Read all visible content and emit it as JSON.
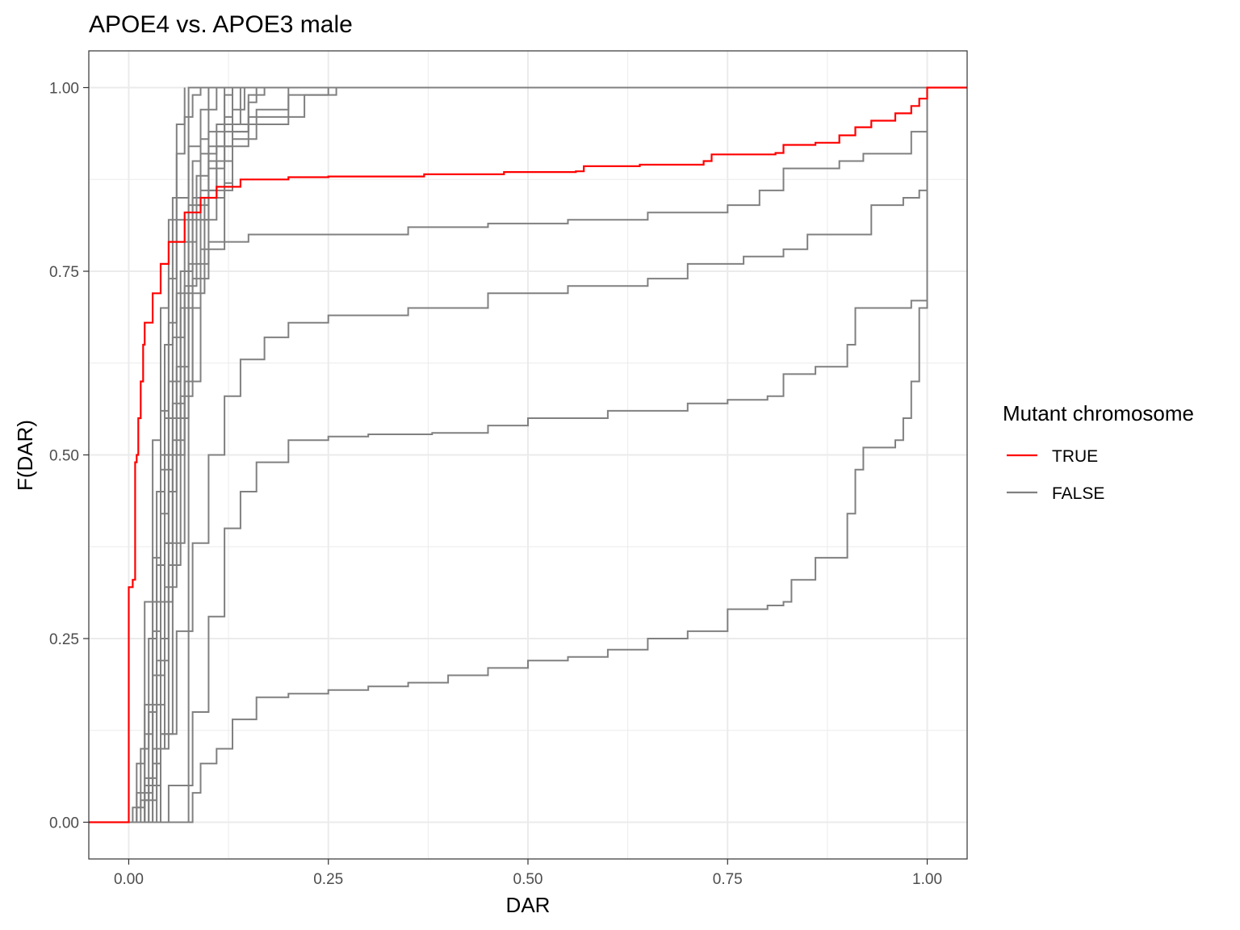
{
  "chart_data": {
    "type": "line",
    "subtype": "empirical cumulative distribution (step)",
    "title": "APOE4 vs. APOE3 male",
    "xlabel": "DAR",
    "ylabel": "F(DAR)",
    "xlim": [
      -0.05,
      1.05
    ],
    "ylim": [
      -0.05,
      1.05
    ],
    "x_ticks": [
      "0.00",
      "0.25",
      "0.50",
      "0.75",
      "1.00"
    ],
    "y_ticks": [
      "0.00",
      "0.25",
      "0.50",
      "0.75",
      "1.00"
    ],
    "x_tick_values": [
      0,
      0.25,
      0.5,
      0.75,
      1.0
    ],
    "y_tick_values": [
      0,
      0.25,
      0.5,
      0.75,
      1.0
    ],
    "grid": true,
    "theme": "bw",
    "legend": {
      "title": "Mutant chromosome",
      "position": "right",
      "entries": [
        {
          "label": "TRUE",
          "color": "#ff0000"
        },
        {
          "label": "FALSE",
          "color": "#808080"
        }
      ]
    },
    "series": [
      {
        "group": "TRUE",
        "color": "#ff0000",
        "points": [
          [
            -0.05,
            0
          ],
          [
            0,
            0
          ],
          [
            0,
            0.32
          ],
          [
            0.005,
            0.33
          ],
          [
            0.008,
            0.49
          ],
          [
            0.01,
            0.5
          ],
          [
            0.012,
            0.55
          ],
          [
            0.015,
            0.6
          ],
          [
            0.018,
            0.65
          ],
          [
            0.02,
            0.68
          ],
          [
            0.03,
            0.72
          ],
          [
            0.04,
            0.76
          ],
          [
            0.05,
            0.79
          ],
          [
            0.07,
            0.83
          ],
          [
            0.09,
            0.85
          ],
          [
            0.11,
            0.865
          ],
          [
            0.14,
            0.875
          ],
          [
            0.2,
            0.878
          ],
          [
            0.25,
            0.879
          ],
          [
            0.37,
            0.882
          ],
          [
            0.47,
            0.885
          ],
          [
            0.56,
            0.886
          ],
          [
            0.57,
            0.893
          ],
          [
            0.64,
            0.895
          ],
          [
            0.72,
            0.9
          ],
          [
            0.73,
            0.909
          ],
          [
            0.81,
            0.911
          ],
          [
            0.82,
            0.922
          ],
          [
            0.86,
            0.925
          ],
          [
            0.89,
            0.935
          ],
          [
            0.91,
            0.946
          ],
          [
            0.93,
            0.955
          ],
          [
            0.96,
            0.965
          ],
          [
            0.98,
            0.975
          ],
          [
            0.99,
            0.985
          ],
          [
            1.0,
            0.985
          ],
          [
            1.0,
            1.0
          ],
          [
            1.05,
            1.0
          ]
        ]
      },
      {
        "group": "FALSE",
        "color": "#808080",
        "points": [
          [
            0,
            0
          ],
          [
            0.075,
            0
          ],
          [
            0.075,
            1.0
          ],
          [
            1.05,
            1.0
          ]
        ]
      },
      {
        "group": "FALSE",
        "color": "#808080",
        "points": [
          [
            0,
            0
          ],
          [
            0.005,
            0.02
          ],
          [
            0.015,
            0.1
          ],
          [
            0.025,
            0.25
          ],
          [
            0.035,
            0.45
          ],
          [
            0.045,
            0.65
          ],
          [
            0.055,
            0.85
          ],
          [
            0.06,
            0.95
          ],
          [
            0.07,
            1.0
          ]
        ]
      },
      {
        "group": "FALSE",
        "color": "#808080",
        "points": [
          [
            0,
            0
          ],
          [
            0.01,
            0.02
          ],
          [
            0.02,
            0.12
          ],
          [
            0.03,
            0.3
          ],
          [
            0.04,
            0.5
          ],
          [
            0.05,
            0.68
          ],
          [
            0.06,
            0.82
          ],
          [
            0.08,
            0.9
          ],
          [
            0.09,
            0.93
          ],
          [
            0.1,
            1.0
          ]
        ]
      },
      {
        "group": "FALSE",
        "color": "#808080",
        "points": [
          [
            0.005,
            0
          ],
          [
            0.015,
            0.03
          ],
          [
            0.025,
            0.15
          ],
          [
            0.035,
            0.35
          ],
          [
            0.045,
            0.55
          ],
          [
            0.06,
            0.72
          ],
          [
            0.075,
            0.84
          ],
          [
            0.09,
            0.91
          ],
          [
            0.11,
            0.95
          ],
          [
            0.12,
            1.0
          ]
        ]
      },
      {
        "group": "FALSE",
        "color": "#808080",
        "points": [
          [
            0.005,
            0
          ],
          [
            0.02,
            0.05
          ],
          [
            0.03,
            0.2
          ],
          [
            0.04,
            0.42
          ],
          [
            0.05,
            0.6
          ],
          [
            0.065,
            0.75
          ],
          [
            0.08,
            0.85
          ],
          [
            0.1,
            0.92
          ],
          [
            0.12,
            0.96
          ],
          [
            0.13,
            1.0
          ]
        ]
      },
      {
        "group": "FALSE",
        "color": "#808080",
        "points": [
          [
            0.01,
            0
          ],
          [
            0.02,
            0.04
          ],
          [
            0.03,
            0.16
          ],
          [
            0.045,
            0.38
          ],
          [
            0.055,
            0.57
          ],
          [
            0.07,
            0.73
          ],
          [
            0.085,
            0.84
          ],
          [
            0.1,
            0.9
          ],
          [
            0.12,
            0.95
          ],
          [
            0.14,
            1.0
          ]
        ]
      },
      {
        "group": "FALSE",
        "color": "#808080",
        "points": [
          [
            0.01,
            0
          ],
          [
            0.025,
            0.06
          ],
          [
            0.035,
            0.22
          ],
          [
            0.05,
            0.45
          ],
          [
            0.06,
            0.62
          ],
          [
            0.075,
            0.76
          ],
          [
            0.09,
            0.86
          ],
          [
            0.11,
            0.92
          ],
          [
            0.13,
            0.97
          ],
          [
            0.145,
            1.0
          ]
        ]
      },
      {
        "group": "FALSE",
        "color": "#808080",
        "points": [
          [
            0.01,
            0
          ],
          [
            0.025,
            0.05
          ],
          [
            0.04,
            0.25
          ],
          [
            0.05,
            0.5
          ],
          [
            0.065,
            0.7
          ],
          [
            0.08,
            0.82
          ],
          [
            0.1,
            0.89
          ],
          [
            0.12,
            0.94
          ],
          [
            0.15,
            0.98
          ],
          [
            0.16,
            1.0
          ]
        ]
      },
      {
        "group": "FALSE",
        "color": "#808080",
        "points": [
          [
            0.015,
            0
          ],
          [
            0.03,
            0.08
          ],
          [
            0.04,
            0.3
          ],
          [
            0.055,
            0.52
          ],
          [
            0.07,
            0.7
          ],
          [
            0.09,
            0.82
          ],
          [
            0.11,
            0.9
          ],
          [
            0.13,
            0.94
          ],
          [
            0.15,
            0.99
          ],
          [
            0.17,
            1.0
          ]
        ]
      },
      {
        "group": "FALSE",
        "color": "#808080",
        "points": [
          [
            0.015,
            0
          ],
          [
            0.03,
            0.1
          ],
          [
            0.045,
            0.32
          ],
          [
            0.06,
            0.55
          ],
          [
            0.075,
            0.72
          ],
          [
            0.095,
            0.85
          ],
          [
            0.12,
            0.92
          ],
          [
            0.15,
            0.96
          ],
          [
            0.2,
            0.99
          ],
          [
            0.25,
            1.0
          ]
        ]
      },
      {
        "group": "FALSE",
        "color": "#808080",
        "points": [
          [
            0.02,
            0
          ],
          [
            0.035,
            0.1
          ],
          [
            0.05,
            0.35
          ],
          [
            0.065,
            0.58
          ],
          [
            0.08,
            0.74
          ],
          [
            0.1,
            0.86
          ],
          [
            0.13,
            0.93
          ],
          [
            0.16,
            0.97
          ],
          [
            0.2,
            1.0
          ]
        ]
      },
      {
        "group": "FALSE",
        "color": "#808080",
        "points": [
          [
            0.02,
            0
          ],
          [
            0.04,
            0.12
          ],
          [
            0.055,
            0.38
          ],
          [
            0.07,
            0.6
          ],
          [
            0.09,
            0.78
          ],
          [
            0.12,
            0.87
          ],
          [
            0.13,
            0.95
          ],
          [
            0.16,
            0.95
          ],
          [
            0.2,
            0.96
          ],
          [
            0.22,
            0.99
          ],
          [
            0.26,
            1.0
          ]
        ]
      },
      {
        "group": "FALSE",
        "color": "#808080",
        "points": [
          [
            0.005,
            0
          ],
          [
            0.01,
            0.04
          ],
          [
            0.02,
            0.16
          ],
          [
            0.03,
            0.36
          ],
          [
            0.04,
            0.56
          ],
          [
            0.05,
            0.74
          ],
          [
            0.06,
            0.85
          ],
          [
            0.075,
            0.92
          ],
          [
            0.09,
            0.97
          ],
          [
            0.11,
            1.0
          ]
        ]
      },
      {
        "group": "FALSE",
        "color": "#808080",
        "points": [
          [
            0.01,
            0
          ],
          [
            0.02,
            0.06
          ],
          [
            0.03,
            0.26
          ],
          [
            0.04,
            0.48
          ],
          [
            0.055,
            0.66
          ],
          [
            0.07,
            0.79
          ],
          [
            0.085,
            0.88
          ],
          [
            0.1,
            0.94
          ],
          [
            0.12,
            0.99
          ],
          [
            0.13,
            1.0
          ]
        ]
      },
      {
        "group": "FALSE",
        "color": "#808080",
        "points": [
          [
            0.005,
            0
          ],
          [
            0.01,
            0.08
          ],
          [
            0.02,
            0.3
          ],
          [
            0.03,
            0.52
          ],
          [
            0.04,
            0.7
          ],
          [
            0.05,
            0.82
          ],
          [
            0.06,
            0.91
          ],
          [
            0.07,
            0.96
          ],
          [
            0.08,
            0.99
          ],
          [
            0.09,
            1.0
          ]
        ]
      },
      {
        "group": "FALSE",
        "color": "#808080",
        "points": [
          [
            0.01,
            0
          ],
          [
            0.02,
            0.03
          ],
          [
            0.035,
            0.2
          ],
          [
            0.045,
            0.38
          ],
          [
            0.055,
            0.5
          ],
          [
            0.07,
            0.6
          ],
          [
            0.08,
            0.7
          ],
          [
            0.09,
            0.76
          ],
          [
            0.1,
            0.79
          ],
          [
            0.15,
            0.8
          ],
          [
            0.25,
            0.8
          ],
          [
            0.35,
            0.81
          ],
          [
            0.45,
            0.815
          ],
          [
            0.55,
            0.82
          ],
          [
            0.65,
            0.83
          ],
          [
            0.75,
            0.84
          ],
          [
            0.79,
            0.86
          ],
          [
            0.81,
            0.86
          ],
          [
            0.82,
            0.89
          ],
          [
            0.89,
            0.9
          ],
          [
            0.92,
            0.91
          ],
          [
            0.97,
            0.91
          ],
          [
            0.98,
            0.94
          ],
          [
            1.0,
            1.0
          ]
        ]
      },
      {
        "group": "FALSE",
        "color": "#808080",
        "points": [
          [
            0.02,
            0
          ],
          [
            0.04,
            0.12
          ],
          [
            0.06,
            0.26
          ],
          [
            0.08,
            0.38
          ],
          [
            0.1,
            0.5
          ],
          [
            0.12,
            0.58
          ],
          [
            0.14,
            0.63
          ],
          [
            0.17,
            0.66
          ],
          [
            0.2,
            0.68
          ],
          [
            0.25,
            0.69
          ],
          [
            0.35,
            0.7
          ],
          [
            0.45,
            0.72
          ],
          [
            0.55,
            0.73
          ],
          [
            0.65,
            0.74
          ],
          [
            0.7,
            0.76
          ],
          [
            0.77,
            0.77
          ],
          [
            0.82,
            0.78
          ],
          [
            0.85,
            0.8
          ],
          [
            0.9,
            0.8
          ],
          [
            0.93,
            0.84
          ],
          [
            0.97,
            0.85
          ],
          [
            0.99,
            0.86
          ],
          [
            1.0,
            1.0
          ]
        ]
      },
      {
        "group": "FALSE",
        "color": "#808080",
        "points": [
          [
            0.02,
            0
          ],
          [
            0.05,
            0.05
          ],
          [
            0.08,
            0.15
          ],
          [
            0.1,
            0.28
          ],
          [
            0.12,
            0.4
          ],
          [
            0.14,
            0.45
          ],
          [
            0.16,
            0.49
          ],
          [
            0.2,
            0.52
          ],
          [
            0.25,
            0.525
          ],
          [
            0.3,
            0.528
          ],
          [
            0.38,
            0.53
          ],
          [
            0.45,
            0.54
          ],
          [
            0.5,
            0.55
          ],
          [
            0.6,
            0.56
          ],
          [
            0.7,
            0.57
          ],
          [
            0.75,
            0.575
          ],
          [
            0.8,
            0.58
          ],
          [
            0.82,
            0.61
          ],
          [
            0.86,
            0.62
          ],
          [
            0.9,
            0.65
          ],
          [
            0.91,
            0.7
          ],
          [
            0.96,
            0.7
          ],
          [
            0.98,
            0.71
          ],
          [
            1.0,
            1.0
          ]
        ]
      },
      {
        "group": "FALSE",
        "color": "#808080",
        "points": [
          [
            0.07,
            0
          ],
          [
            0.08,
            0.04
          ],
          [
            0.09,
            0.08
          ],
          [
            0.11,
            0.1
          ],
          [
            0.13,
            0.14
          ],
          [
            0.16,
            0.17
          ],
          [
            0.2,
            0.175
          ],
          [
            0.25,
            0.18
          ],
          [
            0.3,
            0.185
          ],
          [
            0.35,
            0.19
          ],
          [
            0.4,
            0.2
          ],
          [
            0.45,
            0.21
          ],
          [
            0.5,
            0.22
          ],
          [
            0.55,
            0.225
          ],
          [
            0.6,
            0.235
          ],
          [
            0.65,
            0.25
          ],
          [
            0.7,
            0.26
          ],
          [
            0.75,
            0.29
          ],
          [
            0.8,
            0.295
          ],
          [
            0.82,
            0.3
          ],
          [
            0.83,
            0.33
          ],
          [
            0.86,
            0.36
          ],
          [
            0.9,
            0.4
          ],
          [
            0.9,
            0.42
          ],
          [
            0.91,
            0.48
          ],
          [
            0.92,
            0.51
          ],
          [
            0.96,
            0.52
          ],
          [
            0.97,
            0.55
          ],
          [
            0.98,
            0.6
          ],
          [
            0.99,
            0.7
          ],
          [
            1.0,
            1.0
          ]
        ]
      }
    ]
  }
}
